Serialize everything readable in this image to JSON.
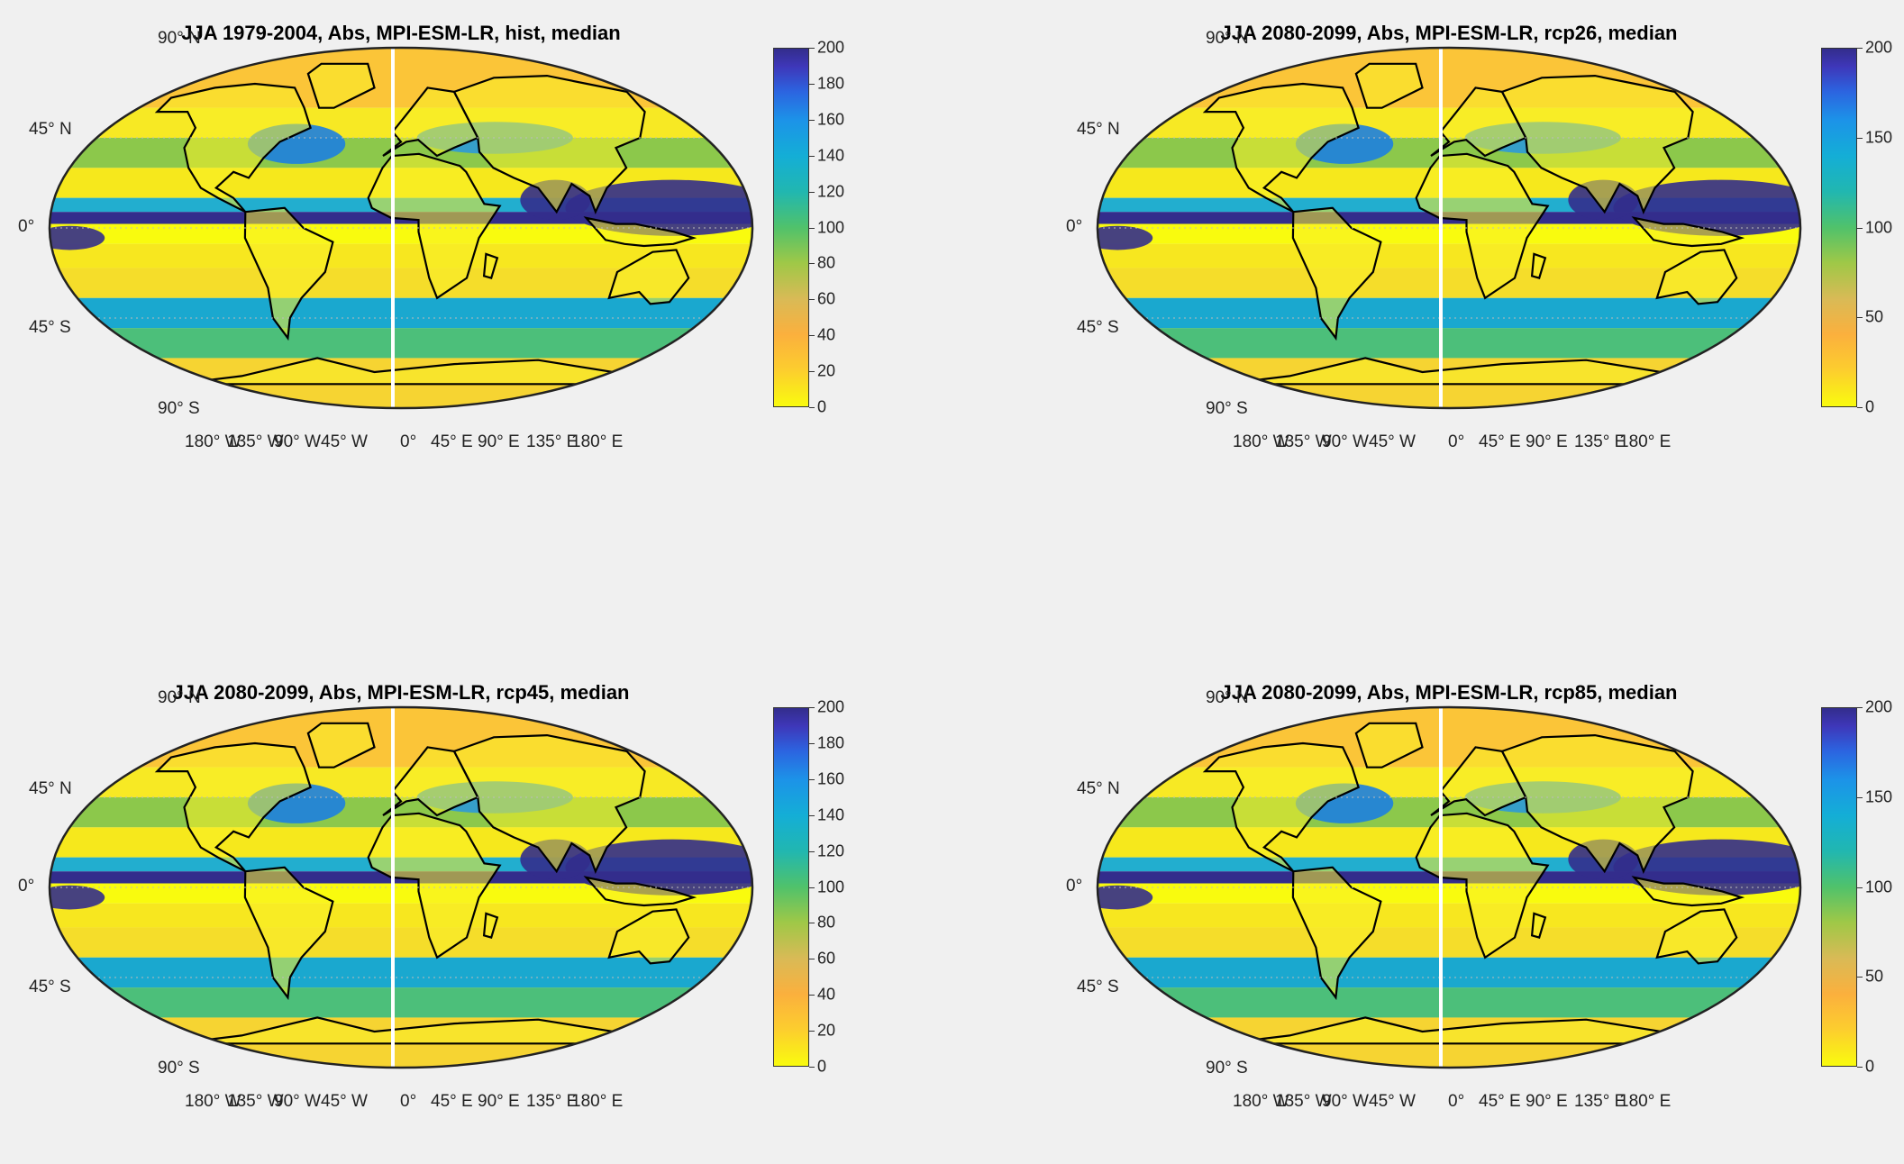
{
  "chart_data": [
    {
      "type": "heatmap",
      "title": "JJA 1979-2004, Abs, MPI-ESM-LR, hist, median",
      "lat_labels": [
        "90° N",
        "45° N",
        "0°",
        "45° S",
        "90° S"
      ],
      "lon_labels": [
        "180° W",
        "135° W",
        "90° W",
        "45° W",
        "0°",
        "45° E",
        "90° E",
        "135° E",
        "180° E"
      ],
      "colorbar": {
        "range": [
          0,
          200
        ],
        "ticks": [
          0,
          20,
          40,
          60,
          80,
          100,
          120,
          140,
          160,
          180,
          200
        ]
      }
    },
    {
      "type": "heatmap",
      "title": "JJA 2080-2099, Abs, MPI-ESM-LR, rcp26, median",
      "lat_labels": [
        "90° N",
        "45° N",
        "0°",
        "45° S",
        "90° S"
      ],
      "lon_labels": [
        "180° W",
        "135° W",
        "90° W",
        "45° W",
        "0°",
        "45° E",
        "90° E",
        "135° E",
        "180° E"
      ],
      "colorbar": {
        "range": [
          0,
          200
        ],
        "ticks": [
          0,
          50,
          100,
          150,
          200
        ]
      }
    },
    {
      "type": "heatmap",
      "title": "JJA 2080-2099, Abs, MPI-ESM-LR, rcp45, median",
      "lat_labels": [
        "90° N",
        "45° N",
        "0°",
        "45° S",
        "90° S"
      ],
      "lon_labels": [
        "180° W",
        "135° W",
        "90° W",
        "45° W",
        "0°",
        "45° E",
        "90° E",
        "135° E",
        "180° E"
      ],
      "colorbar": {
        "range": [
          0,
          200
        ],
        "ticks": [
          0,
          20,
          40,
          60,
          80,
          100,
          120,
          140,
          160,
          180,
          200
        ]
      }
    },
    {
      "type": "heatmap",
      "title": "JJA 2080-2099, Abs, MPI-ESM-LR, rcp85, median",
      "lat_labels": [
        "90° N",
        "45° N",
        "0°",
        "45° S",
        "90° S"
      ],
      "lon_labels": [
        "180° W",
        "135° W",
        "90° W",
        "45° W",
        "0°",
        "45° E",
        "90° E",
        "135° E",
        "180° E"
      ],
      "colorbar": {
        "range": [
          0,
          200
        ],
        "ticks": [
          0,
          50,
          100,
          150,
          200
        ]
      }
    }
  ],
  "colors": {
    "low": "#f9fb0e",
    "mid": "#21b7b0",
    "high": "#332d8c",
    "background": "#f0f0f0"
  }
}
